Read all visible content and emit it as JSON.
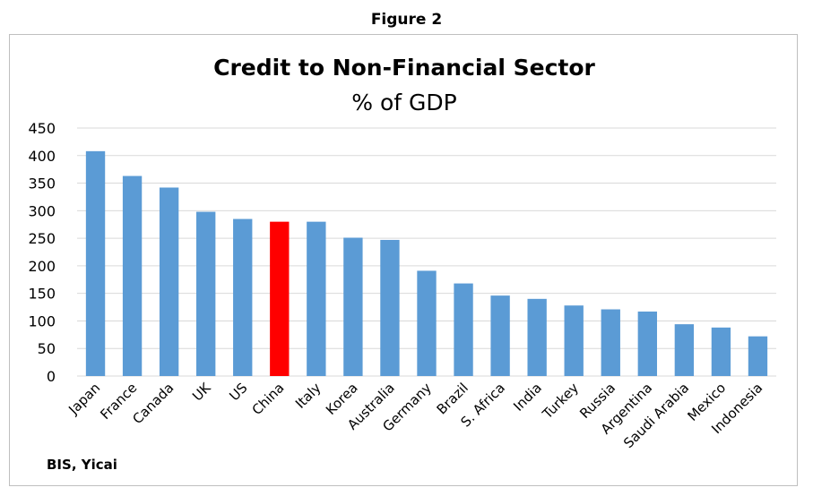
{
  "figure_label": "Figure 2",
  "source": "BIS, Yicai",
  "colors": {
    "bar": "#5b9bd5",
    "highlight": "#ff0000",
    "grid": "#d9d9d9"
  },
  "chart_data": {
    "type": "bar",
    "title": "Credit to Non-Financial Sector",
    "subtitle": "% of GDP",
    "xlabel": "",
    "ylabel": "",
    "ylim": [
      0,
      450
    ],
    "yticks": [
      0,
      50,
      100,
      150,
      200,
      250,
      300,
      350,
      400,
      450
    ],
    "grid": true,
    "highlight": "China",
    "categories": [
      "Japan",
      "France",
      "Canada",
      "UK",
      "US",
      "China",
      "Italy",
      "Korea",
      "Australia",
      "Germany",
      "Brazil",
      "S. Africa",
      "India",
      "Turkey",
      "Russia",
      "Argentina",
      "Saudi Arabia",
      "Mexico",
      "Indonesia"
    ],
    "values": [
      408,
      363,
      342,
      298,
      285,
      280,
      280,
      251,
      247,
      191,
      168,
      146,
      140,
      128,
      121,
      117,
      94,
      88,
      72
    ]
  }
}
